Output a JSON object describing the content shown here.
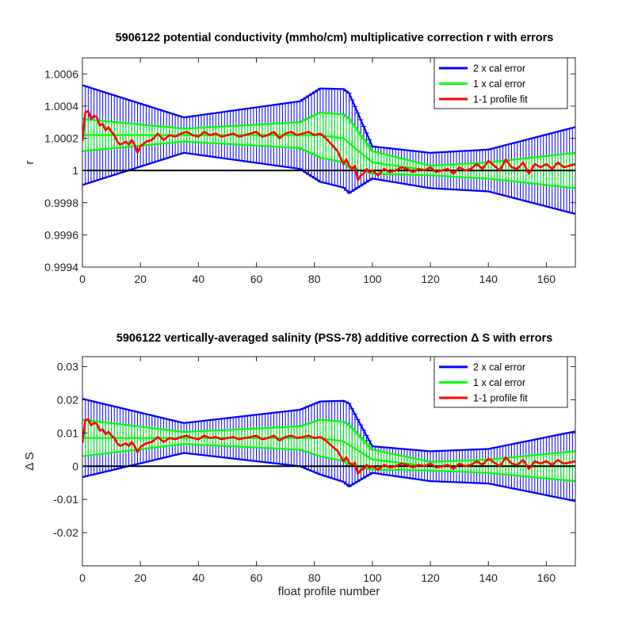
{
  "chart_data": [
    {
      "type": "line",
      "title": "5906122 potential conductivity (mmho/cm) multiplicative correction r with errors",
      "xlabel": "",
      "ylabel": "r",
      "xlim": [
        0,
        170
      ],
      "ylim": [
        0.9994,
        1.0007
      ],
      "xticks": [
        0,
        20,
        40,
        60,
        80,
        100,
        120,
        140,
        160
      ],
      "xtick_labels": [
        "0",
        "20",
        "40",
        "60",
        "80",
        "100",
        "120",
        "140",
        "160"
      ],
      "yticks": [
        0.9994,
        0.9996,
        0.9998,
        1.0,
        1.0002,
        1.0004,
        1.0006
      ],
      "ytick_labels": [
        "0.9994",
        "0.9996",
        "0.9998",
        "1",
        "1.0002",
        "1.0004",
        "1.0006"
      ],
      "reference_line": 1.0,
      "legend_position": "top-right",
      "legend": [
        "2 x cal error",
        "1 x cal error",
        "1-1 profile fit"
      ],
      "series": [
        {
          "name": "2 x cal error",
          "color": "#0000ff",
          "style": "errorbar",
          "center_knots": [
            [
              0,
              1.00022
            ],
            [
              40,
              1.00022
            ],
            [
              75,
              1.00022
            ],
            [
              82,
              1.00022
            ],
            [
              90,
              1.0002
            ],
            [
              100,
              1.00005
            ],
            [
              120,
              1.0
            ],
            [
              170,
              1.0
            ]
          ],
          "halfwidth_knots": [
            [
              0,
              0.00031
            ],
            [
              35,
              0.00011
            ],
            [
              75,
              0.00021
            ],
            [
              82,
              0.00029
            ],
            [
              92,
              0.00031
            ],
            [
              100,
              0.0001
            ],
            [
              120,
              0.00011
            ],
            [
              140,
              0.00013
            ],
            [
              170,
              0.00027
            ]
          ]
        },
        {
          "name": "1 x cal error",
          "color": "#00ff00",
          "style": "errorbar",
          "center_knots": [
            [
              0,
              1.00022
            ],
            [
              40,
              1.00022
            ],
            [
              75,
              1.00022
            ],
            [
              82,
              1.00022
            ],
            [
              90,
              1.0002
            ],
            [
              100,
              1.00005
            ],
            [
              120,
              1.0
            ],
            [
              170,
              1.0
            ]
          ],
          "halfwidth_knots": [
            [
              0,
              0.0001
            ],
            [
              35,
              4e-05
            ],
            [
              75,
              8e-05
            ],
            [
              82,
              0.00014
            ],
            [
              92,
              0.00015
            ],
            [
              100,
              7e-05
            ],
            [
              120,
              3e-05
            ],
            [
              140,
              5e-05
            ],
            [
              170,
              0.00011
            ]
          ]
        },
        {
          "name": "1-1 profile fit",
          "color": "#ff0000",
          "style": "line",
          "x": [
            0,
            1,
            2,
            3,
            4,
            5,
            6,
            7,
            8,
            9,
            10,
            11,
            12,
            13,
            14,
            15,
            16,
            17,
            18,
            19,
            20,
            22,
            24,
            26,
            28,
            30,
            32,
            34,
            36,
            38,
            40,
            42,
            44,
            46,
            48,
            50,
            52,
            54,
            56,
            58,
            60,
            62,
            64,
            66,
            68,
            70,
            72,
            74,
            76,
            78,
            80,
            82,
            84,
            86,
            88,
            90,
            91,
            92,
            93,
            94,
            95,
            96,
            97,
            98,
            99,
            100,
            102,
            104,
            106,
            108,
            110,
            112,
            114,
            116,
            118,
            120,
            122,
            124,
            126,
            128,
            130,
            132,
            134,
            136,
            138,
            140,
            142,
            144,
            146,
            148,
            150,
            152,
            154,
            156,
            158,
            160,
            162,
            164,
            166,
            168,
            170
          ],
          "y": [
            1.00018,
            1.00036,
            1.00037,
            1.00032,
            1.00034,
            1.00033,
            1.00028,
            1.00029,
            1.00025,
            1.00027,
            1.00024,
            1.00022,
            1.00018,
            1.00016,
            1.00017,
            1.00018,
            1.00016,
            1.00019,
            1.00016,
            1.00011,
            1.00015,
            1.00018,
            1.00019,
            1.00023,
            1.00019,
            1.00022,
            1.00021,
            1.00023,
            1.00024,
            1.00022,
            1.00021,
            1.00024,
            1.00022,
            1.00023,
            1.00021,
            1.00022,
            1.00023,
            1.00021,
            1.00022,
            1.00023,
            1.00024,
            1.00021,
            1.00022,
            1.00024,
            1.0002,
            1.00023,
            1.00024,
            1.00022,
            1.00023,
            1.00024,
            1.00022,
            1.00023,
            1.0002,
            1.00016,
            1.00012,
            1.00004,
            1.00007,
            1.00003,
            1.00001,
            1.00003,
            0.99994,
            0.99997,
            0.99998,
            1.00001,
            0.99999,
            1.0,
            0.99997,
            1.00001,
            0.99999,
            1.0,
            1.00002,
            1.00001,
            0.99999,
            1.00001,
            1.0,
            1.00002,
            0.99999,
            1.0,
            1.00001,
            0.99998,
            1.00002,
            1.0,
            1.00001,
            1.00004,
            1.00001,
            1.00006,
            1.00003,
            1.0,
            1.00007,
            1.00002,
            1.00001,
            1.00005,
            0.99998,
            1.00004,
            1.00002,
            1.00004,
            1.00001,
            1.00005,
            1.00002,
            1.00003,
            1.00004
          ]
        }
      ]
    },
    {
      "type": "line",
      "title": "5906122 vertically-averaged salinity (PSS-78) additive correction Δ S with errors",
      "xlabel": "float profile number",
      "ylabel": "Δ S",
      "xlim": [
        0,
        170
      ],
      "ylim": [
        -0.03,
        0.033
      ],
      "xticks": [
        0,
        20,
        40,
        60,
        80,
        100,
        120,
        140,
        160
      ],
      "xtick_labels": [
        "0",
        "20",
        "40",
        "60",
        "80",
        "100",
        "120",
        "140",
        "160"
      ],
      "yticks": [
        -0.02,
        -0.01,
        0,
        0.01,
        0.02,
        0.03
      ],
      "ytick_labels": [
        "-0.02",
        "-0.01",
        "0",
        "0.01",
        "0.02",
        "0.03"
      ],
      "reference_line": 0,
      "legend_position": "top-right",
      "legend": [
        "2 x cal error",
        "1 x cal error",
        "1-1 profile fit"
      ],
      "series": [
        {
          "name": "2 x cal error",
          "color": "#0000ff",
          "style": "errorbar",
          "center_knots": [
            [
              0,
              0.0085
            ],
            [
              40,
              0.0085
            ],
            [
              75,
              0.0085
            ],
            [
              82,
              0.0085
            ],
            [
              90,
              0.0075
            ],
            [
              100,
              0.002
            ],
            [
              120,
              0.0
            ],
            [
              170,
              0.0
            ]
          ],
          "halfwidth_knots": [
            [
              0,
              0.0118
            ],
            [
              35,
              0.0045
            ],
            [
              75,
              0.0085
            ],
            [
              82,
              0.011
            ],
            [
              92,
              0.0125
            ],
            [
              100,
              0.004
            ],
            [
              120,
              0.0045
            ],
            [
              140,
              0.0052
            ],
            [
              170,
              0.0105
            ]
          ]
        },
        {
          "name": "1 x cal error",
          "color": "#00ff00",
          "style": "errorbar",
          "center_knots": [
            [
              0,
              0.0085
            ],
            [
              40,
              0.0085
            ],
            [
              75,
              0.0085
            ],
            [
              82,
              0.0085
            ],
            [
              90,
              0.0075
            ],
            [
              100,
              0.002
            ],
            [
              120,
              0.0
            ],
            [
              170,
              0.0
            ]
          ],
          "halfwidth_knots": [
            [
              0,
              0.0055
            ],
            [
              35,
              0.0018
            ],
            [
              75,
              0.0035
            ],
            [
              82,
              0.0055
            ],
            [
              92,
              0.006
            ],
            [
              100,
              0.003
            ],
            [
              120,
              0.0013
            ],
            [
              140,
              0.002
            ],
            [
              170,
              0.0045
            ]
          ]
        },
        {
          "name": "1-1 profile fit",
          "color": "#ff0000",
          "style": "line",
          "x": [
            0,
            1,
            2,
            3,
            4,
            5,
            6,
            7,
            8,
            9,
            10,
            11,
            12,
            13,
            14,
            15,
            16,
            17,
            18,
            19,
            20,
            22,
            24,
            26,
            28,
            30,
            32,
            34,
            36,
            38,
            40,
            42,
            44,
            46,
            48,
            50,
            52,
            54,
            56,
            58,
            60,
            62,
            64,
            66,
            68,
            70,
            72,
            74,
            76,
            78,
            80,
            82,
            84,
            86,
            88,
            90,
            91,
            92,
            93,
            94,
            95,
            96,
            97,
            98,
            99,
            100,
            102,
            104,
            106,
            108,
            110,
            112,
            114,
            116,
            118,
            120,
            122,
            124,
            126,
            128,
            130,
            132,
            134,
            136,
            138,
            140,
            142,
            144,
            146,
            148,
            150,
            152,
            154,
            156,
            158,
            160,
            162,
            164,
            166,
            168,
            170
          ],
          "y": [
            0.007,
            0.0138,
            0.0142,
            0.0123,
            0.0131,
            0.0127,
            0.0107,
            0.0111,
            0.0096,
            0.0104,
            0.0092,
            0.0085,
            0.0069,
            0.0061,
            0.0065,
            0.0069,
            0.0061,
            0.0073,
            0.0061,
            0.0042,
            0.0058,
            0.0069,
            0.0073,
            0.0088,
            0.0073,
            0.0085,
            0.0081,
            0.0088,
            0.0092,
            0.0085,
            0.0081,
            0.0092,
            0.0085,
            0.0088,
            0.0081,
            0.0085,
            0.0088,
            0.0081,
            0.0085,
            0.0088,
            0.0092,
            0.0081,
            0.0085,
            0.0092,
            0.0077,
            0.0088,
            0.0092,
            0.0085,
            0.0088,
            0.0092,
            0.0085,
            0.0088,
            0.0077,
            0.0061,
            0.0046,
            0.0015,
            0.0027,
            0.0011,
            0.0004,
            0.0011,
            -0.0023,
            -0.0011,
            -0.0008,
            0.0004,
            -0.0004,
            0.0,
            -0.0011,
            0.0004,
            -0.0004,
            0.0,
            0.0008,
            0.0004,
            -0.0004,
            0.0004,
            0.0,
            0.0008,
            -0.0004,
            0.0,
            0.0004,
            -0.0008,
            0.0008,
            0.0,
            0.0004,
            0.0015,
            0.0004,
            0.0023,
            0.0011,
            0.0,
            0.0027,
            0.0008,
            0.0004,
            0.0019,
            -0.0008,
            0.0015,
            0.0008,
            0.0015,
            0.0004,
            0.0019,
            0.0008,
            0.0011,
            0.0015
          ]
        }
      ]
    }
  ]
}
